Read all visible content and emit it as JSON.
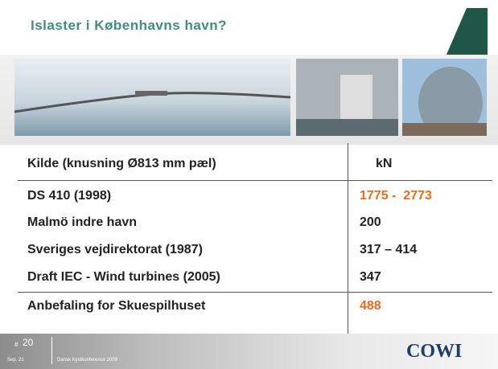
{
  "header": {
    "title": "Islaster i Københavns havn?"
  },
  "table": {
    "header": [
      "Kilde (knusning Ø813 mm pæl)",
      "kN"
    ],
    "rows": [
      [
        "DS 410 (1998)",
        "1775 -  2773"
      ],
      [
        "Malmö indre havn",
        "200"
      ],
      [
        "Sveriges vejdirektorat (1987)",
        "317 – 414"
      ],
      [
        "Draft IEC - Wind turbines (2005)",
        "347"
      ],
      [
        "Anbefaling for Skuespilhuset",
        "488"
      ]
    ]
  },
  "footer": {
    "hash": "#",
    "slide_number": "20",
    "date": "Sep. 21",
    "event": "Dansk Kystkonference 2009",
    "logo": "COWI"
  }
}
